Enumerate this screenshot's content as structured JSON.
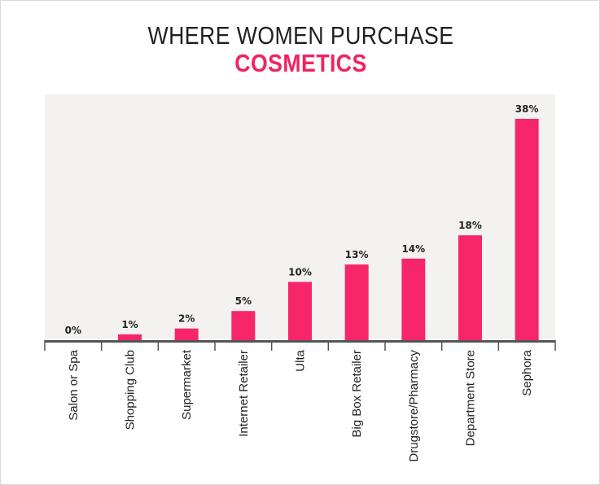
{
  "title_line1": "WHERE WOMEN PURCHASE",
  "title_line2": "COSMETICS",
  "colors": {
    "bar": "#f7266a",
    "title_accent": "#f0245f",
    "plot_background": "#f3f2f1",
    "axis": "#555555",
    "text": "#222222"
  },
  "chart_data": {
    "type": "bar",
    "title": "WHERE WOMEN PURCHASE COSMETICS",
    "categories": [
      "Salon or Spa",
      "Shopping Club",
      "Supermarket",
      "Internet Retailer",
      "Ulta",
      "Big Box Retailer",
      "Drugstore/Pharmacy",
      "Department Store",
      "Sephora"
    ],
    "values": [
      0,
      1,
      2,
      5,
      10,
      13,
      14,
      18,
      38
    ],
    "data_labels": [
      "0%",
      "1%",
      "2%",
      "5%",
      "10%",
      "13%",
      "14%",
      "18%",
      "38%"
    ],
    "unit": "%",
    "ylim": [
      0,
      38
    ],
    "xlabel": "",
    "ylabel": "",
    "grid": false,
    "legend": "none"
  }
}
